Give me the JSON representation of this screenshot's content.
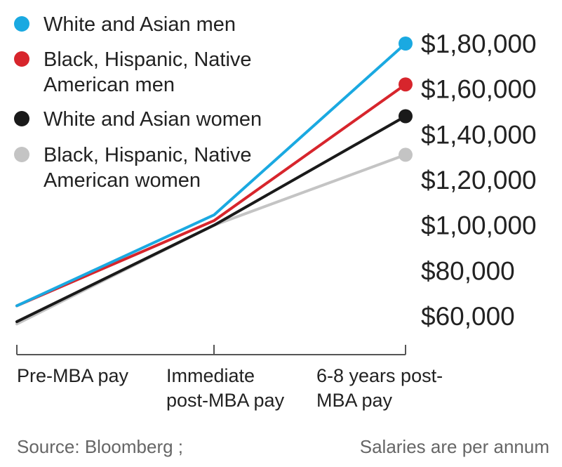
{
  "chart_data": {
    "type": "line",
    "title": "",
    "xlabel": "",
    "ylabel": "",
    "categories": [
      [
        "Pre-MBA pay"
      ],
      [
        "Immediate",
        "post-MBA pay"
      ],
      [
        "6-8 years post-",
        "MBA pay"
      ]
    ],
    "ylim": [
      60000,
      180000
    ],
    "yticks": [
      {
        "value": 180000,
        "label": "$1,80,000"
      },
      {
        "value": 160000,
        "label": "$1,60,000"
      },
      {
        "value": 140000,
        "label": "$1,40,000"
      },
      {
        "value": 120000,
        "label": "$1,20,000"
      },
      {
        "value": 100000,
        "label": "$1,00,000"
      },
      {
        "value": 80000,
        "label": "$80,000"
      },
      {
        "value": 60000,
        "label": "$60,000"
      }
    ],
    "legend_position": "top-left",
    "grid": false,
    "series": [
      {
        "name": [
          "White and Asian men"
        ],
        "color": "#1aa9e1",
        "values": [
          64500,
          104500,
          180000
        ],
        "end_marker": true
      },
      {
        "name": [
          "Black, Hispanic, Native",
          "American men"
        ],
        "color": "#d7252c",
        "values": [
          64500,
          102000,
          162000
        ],
        "end_marker": true
      },
      {
        "name": [
          "White and Asian women"
        ],
        "color": "#1a1a1a",
        "values": [
          57500,
          100000,
          148000
        ],
        "end_marker": true
      },
      {
        "name": [
          "Black, Hispanic, Native",
          "American women"
        ],
        "color": "#c4c4c4",
        "values": [
          56500,
          100000,
          131000
        ],
        "end_marker": true
      }
    ]
  },
  "footer": {
    "source": "Source: Bloomberg ;",
    "note": "Salaries are per annum"
  }
}
